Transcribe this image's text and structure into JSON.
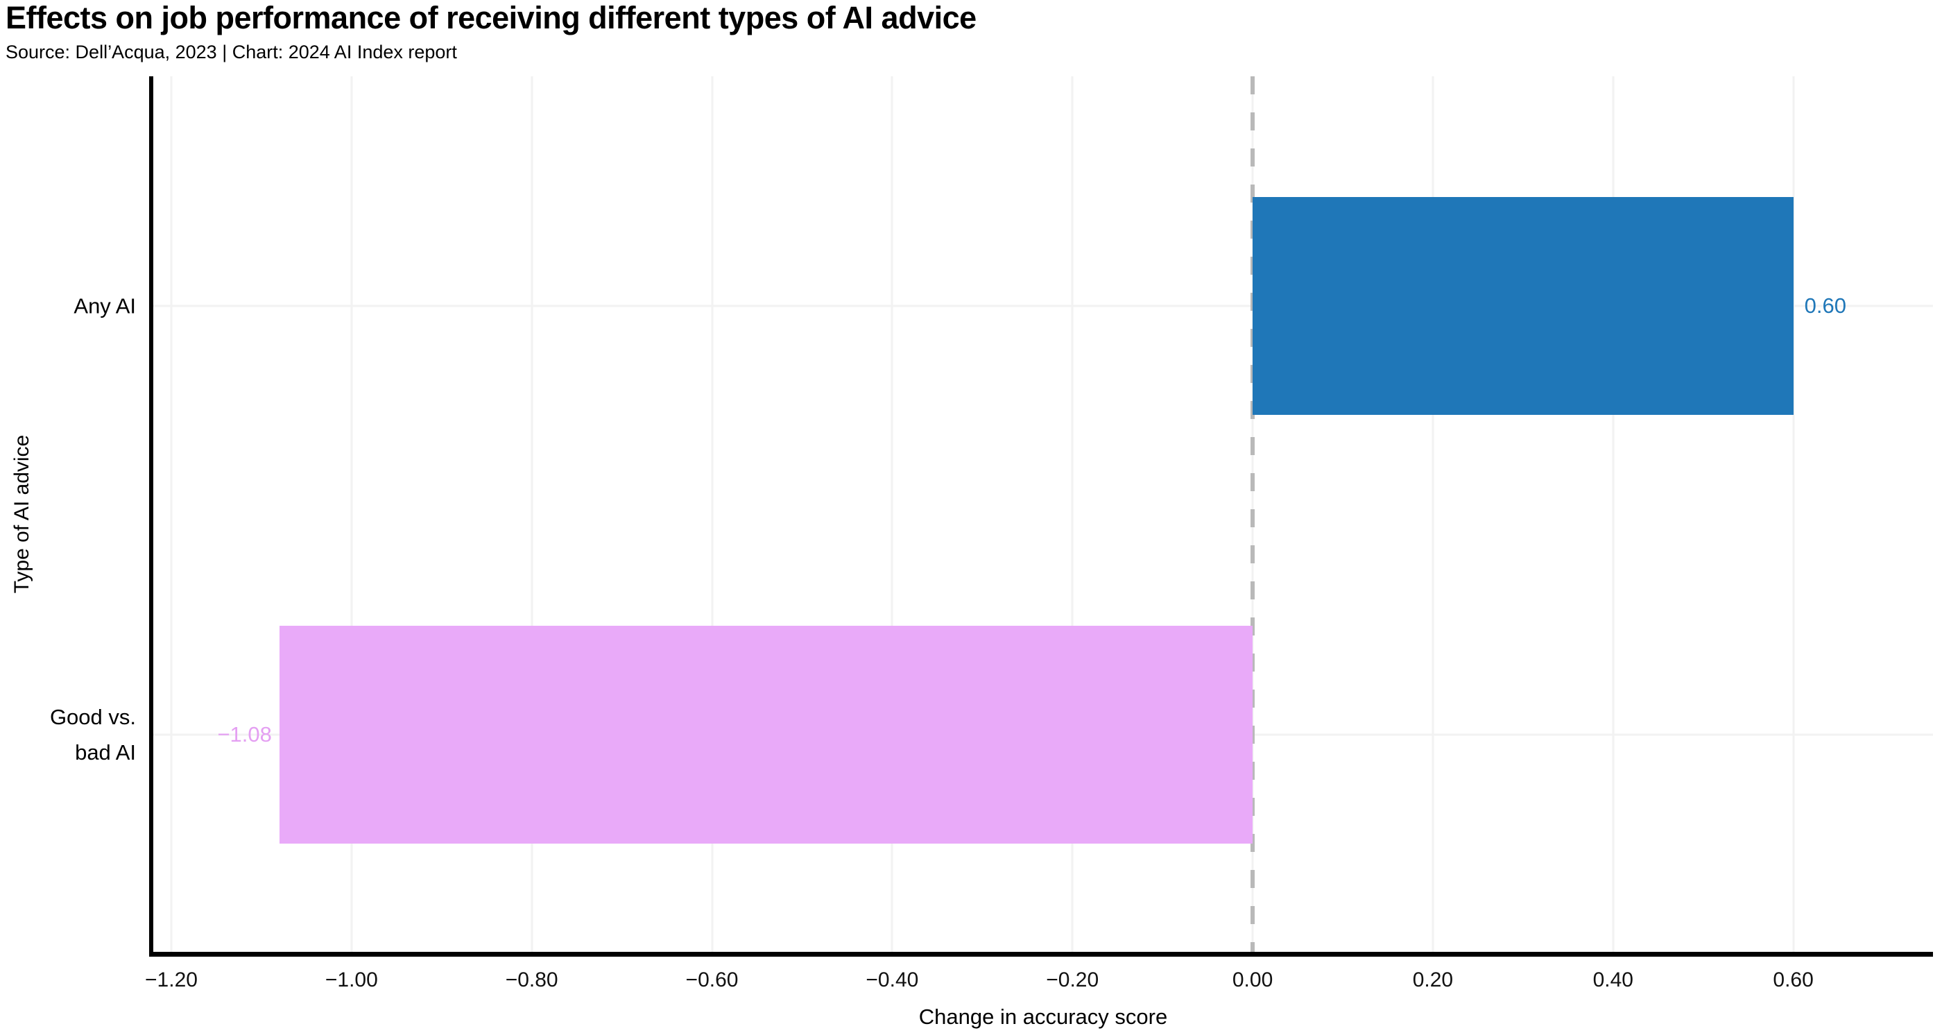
{
  "chart_data": {
    "type": "bar",
    "orientation": "horizontal",
    "title": "Effects on job performance of receiving different types of AI advice",
    "subtitle": "Source: Dell’Acqua, 2023 | Chart: 2024 AI Index report",
    "xlabel": "Change in accuracy score",
    "ylabel": "Type of AI advice",
    "categories": [
      "Any AI",
      "Good vs. bad AI"
    ],
    "category_lines": [
      [
        "Any AI"
      ],
      [
        "Good vs.",
        "bad AI"
      ]
    ],
    "values": [
      0.6,
      -1.08
    ],
    "value_labels": [
      "0.60",
      "−1.08"
    ],
    "bar_colors": [
      "#1f77b8",
      "#e9aaf9"
    ],
    "value_label_colors": [
      "#1f77b8",
      "#e49ff2"
    ],
    "x_ticks": [
      -1.2,
      -1.0,
      -0.8,
      -0.6,
      -0.4,
      -0.2,
      0.0,
      0.2,
      0.4,
      0.6
    ],
    "x_tick_labels": [
      "−1.20",
      "−1.00",
      "−0.80",
      "−0.60",
      "−0.40",
      "−0.20",
      "0.00",
      "0.20",
      "0.40",
      "0.60"
    ],
    "xlim": [
      -1.22,
      0.755
    ],
    "grid": true,
    "gridline_color": "#f2f2f2",
    "spine_color": "#000000",
    "zero_line": {
      "x": 0,
      "style": "dashed",
      "color": "#b9b9b9"
    }
  }
}
